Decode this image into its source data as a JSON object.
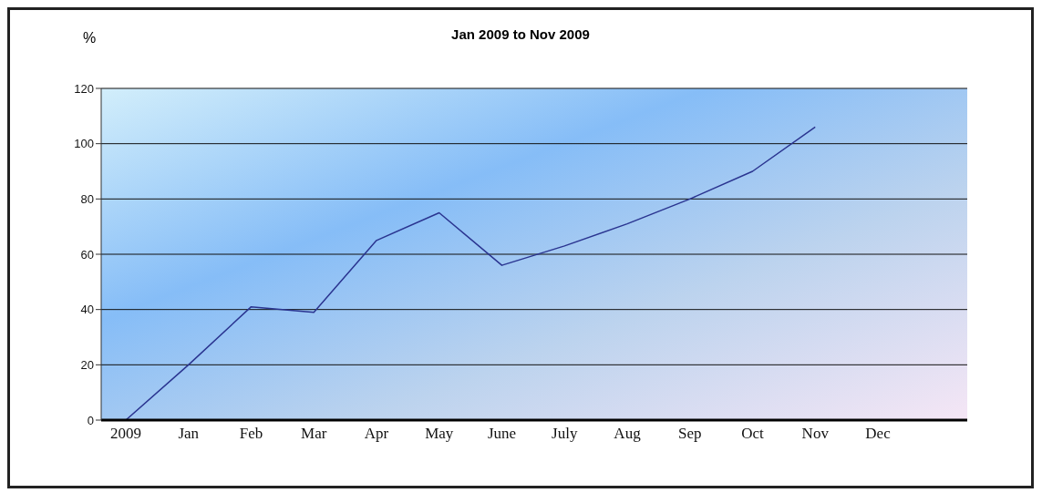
{
  "chart_data": {
    "type": "line",
    "title": "Jan 2009 to Nov 2009",
    "ylabel": "%",
    "categories": [
      "2009",
      "Jan",
      "Feb",
      "Mar",
      "Apr",
      "May",
      "June",
      "July",
      "Aug",
      "Sep",
      "Oct",
      "Nov",
      "Dec"
    ],
    "series": [
      {
        "color": "#2a3490",
        "values": [
          0,
          20,
          41,
          39,
          65,
          75,
          56,
          63,
          71,
          80,
          90,
          106,
          null
        ]
      }
    ],
    "ylim": [
      0,
      120
    ],
    "yticks": [
      0,
      20,
      40,
      60,
      80,
      100,
      120
    ],
    "grid": "y",
    "legend": false,
    "marker": "none",
    "line_style": "solid"
  }
}
